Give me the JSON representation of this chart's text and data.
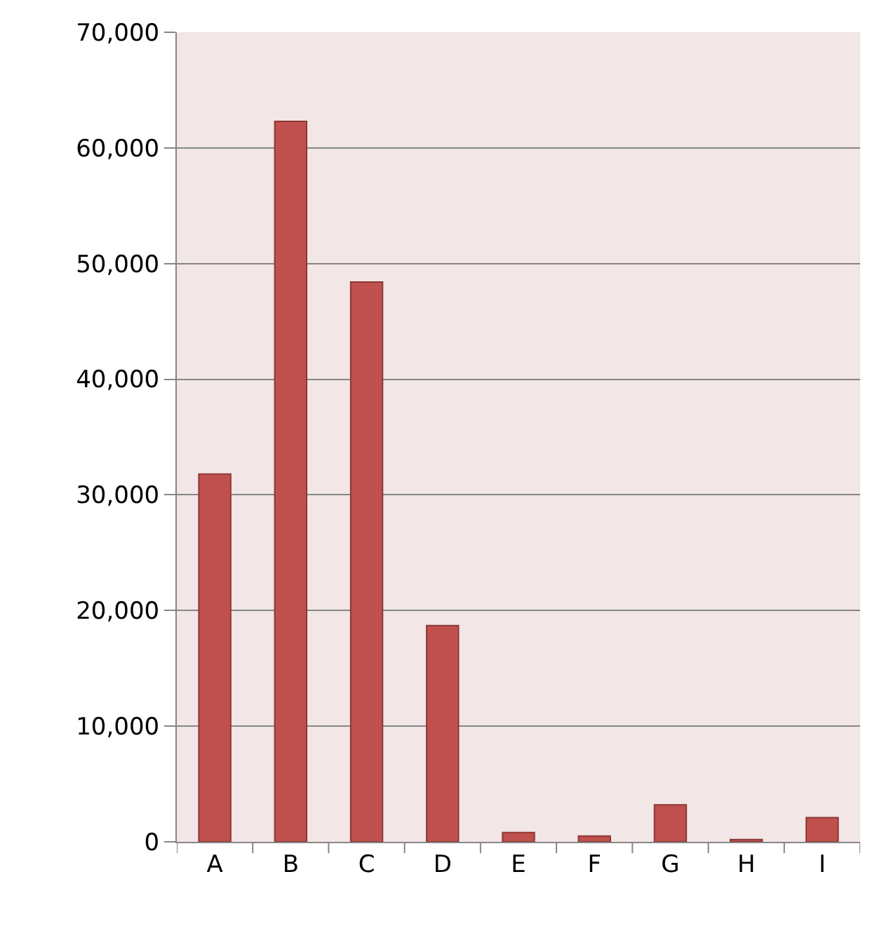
{
  "chart_data": {
    "type": "bar",
    "categories": [
      "A",
      "B",
      "C",
      "D",
      "E",
      "F",
      "G",
      "H",
      "I"
    ],
    "values": [
      31800,
      62300,
      48400,
      18700,
      800,
      500,
      3200,
      200,
      2100
    ],
    "color": "#c0504d",
    "ylim": [
      0,
      70000
    ],
    "yticks": [
      {
        "value": 0,
        "label": "0"
      },
      {
        "value": 10000,
        "label": "10,000"
      },
      {
        "value": 20000,
        "label": "20,000"
      },
      {
        "value": 30000,
        "label": "30,000"
      },
      {
        "value": 40000,
        "label": "40,000"
      },
      {
        "value": 50000,
        "label": "50,000"
      },
      {
        "value": 60000,
        "label": "60,000"
      },
      {
        "value": 70000,
        "label": "70,000"
      }
    ],
    "grid": "y",
    "legend": false
  }
}
